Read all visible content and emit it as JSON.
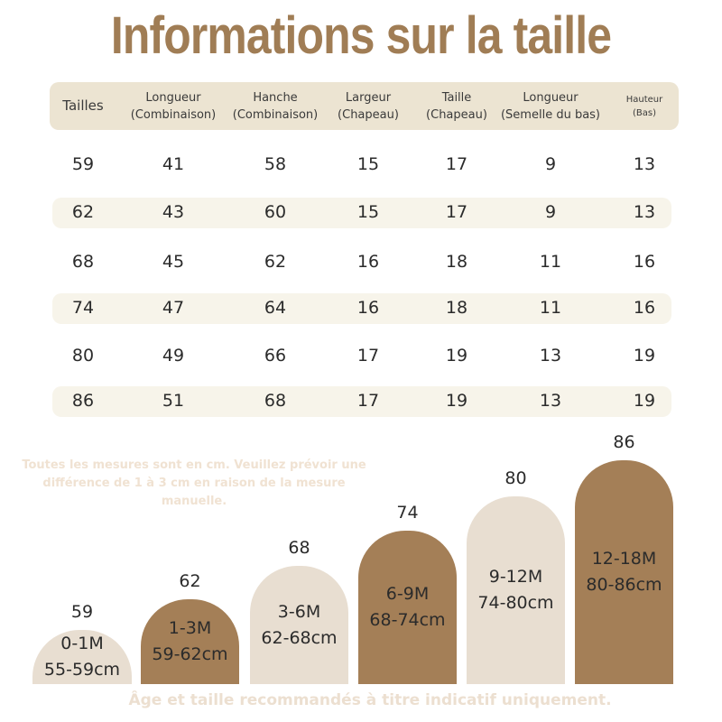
{
  "title": "Informations sur la taille",
  "table": {
    "headers": [
      {
        "text": "Tailles",
        "size": "big"
      },
      {
        "text": "Longueur\n(Combinaison)",
        "size": "normal"
      },
      {
        "text": "Hanche\n(Combinaison)",
        "size": "normal"
      },
      {
        "text": "Largeur\n(Chapeau)",
        "size": "normal"
      },
      {
        "text": "Taille\n(Chapeau)",
        "size": "normal"
      },
      {
        "text": "Longueur\n(Semelle du bas)",
        "size": "normal"
      },
      {
        "text": "Hauteur\n(Bas)",
        "size": "small"
      }
    ],
    "rows": [
      {
        "cells": [
          "59",
          "41",
          "58",
          "15",
          "17",
          "9",
          "13"
        ],
        "shaded": false
      },
      {
        "cells": [
          "62",
          "43",
          "60",
          "15",
          "17",
          "9",
          "13"
        ],
        "shaded": true
      },
      {
        "cells": [
          "68",
          "45",
          "62",
          "16",
          "18",
          "11",
          "16"
        ],
        "shaded": false
      },
      {
        "cells": [
          "74",
          "47",
          "64",
          "16",
          "18",
          "11",
          "16"
        ],
        "shaded": true
      },
      {
        "cells": [
          "80",
          "49",
          "66",
          "17",
          "19",
          "13",
          "19"
        ],
        "shaded": false
      },
      {
        "cells": [
          "86",
          "51",
          "68",
          "17",
          "19",
          "13",
          "19"
        ],
        "shaded": true
      }
    ]
  },
  "note": "Toutes les mesures sont en cm. Veuillez prévoir une différence de 1 à 3 cm en raison de la mesure manuelle.",
  "sizes": [
    {
      "size": "59",
      "age": "0-1M",
      "range": "55-59cm",
      "tone": "light"
    },
    {
      "size": "62",
      "age": "1-3M",
      "range": "59-62cm",
      "tone": "dark"
    },
    {
      "size": "68",
      "age": "3-6M",
      "range": "62-68cm",
      "tone": "light"
    },
    {
      "size": "74",
      "age": "6-9M",
      "range": "68-74cm",
      "tone": "dark"
    },
    {
      "size": "80",
      "age": "9-12M",
      "range": "74-80cm",
      "tone": "light"
    },
    {
      "size": "86",
      "age": "12-18M",
      "range": "80-86cm",
      "tone": "dark"
    }
  ],
  "footer": "Âge et taille recommandés à titre indicatif uniquement.",
  "colors": {
    "title": "#a07d55",
    "header_bg": "#ece4d2",
    "row_shade": "#f7f4ea",
    "bar_light": "#e8ded1",
    "bar_dark": "#a47f57"
  }
}
